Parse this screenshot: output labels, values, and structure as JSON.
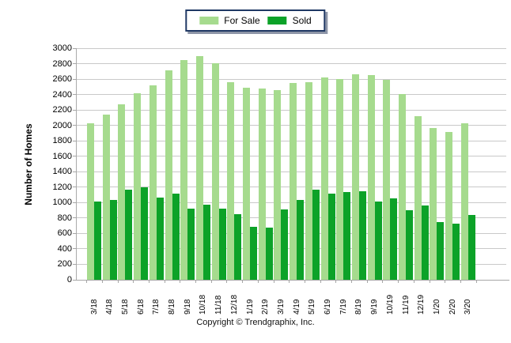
{
  "legend": {
    "items": [
      {
        "label": "For Sale",
        "color": "#A6DB8E"
      },
      {
        "label": "Sold",
        "color": "#0CA228"
      }
    ]
  },
  "footer": {
    "text": "Copyright © Trendgraphix, Inc."
  },
  "colors": {
    "background": "#FFFFFF",
    "gridline": "#C9C9C9",
    "axis": "#A6A6A6",
    "legend_border": "#1F3864",
    "for_sale": "#A6DB8E",
    "sold": "#0CA228"
  },
  "chart_data": {
    "type": "bar",
    "title": "",
    "xlabel": "",
    "ylabel": "Number of Homes",
    "ylim": [
      0,
      3000
    ],
    "ytick_step": 200,
    "grid": true,
    "legend_position": "top-center",
    "categories": [
      "3/18",
      "4/18",
      "5/18",
      "6/18",
      "7/18",
      "8/18",
      "9/18",
      "10/18",
      "11/18",
      "12/18",
      "1/19",
      "2/19",
      "3/19",
      "4/19",
      "5/19",
      "6/19",
      "7/19",
      "8/19",
      "9/19",
      "10/19",
      "11/19",
      "12/19",
      "1/20",
      "2/20",
      "3/20"
    ],
    "series": [
      {
        "name": "For Sale",
        "color": "#A6DB8E",
        "values": [
          2030,
          2140,
          2270,
          2420,
          2520,
          2710,
          2850,
          2900,
          2810,
          2560,
          2490,
          2480,
          2460,
          2550,
          2560,
          2620,
          2600,
          2660,
          2650,
          2590,
          2410,
          2120,
          1970,
          1910,
          2030
        ]
      },
      {
        "name": "Sold",
        "color": "#0CA228",
        "values": [
          1010,
          1030,
          1170,
          1200,
          1060,
          1120,
          920,
          970,
          920,
          850,
          690,
          680,
          910,
          1030,
          1170,
          1120,
          1140,
          1150,
          1010,
          1050,
          900,
          960,
          750,
          730,
          840
        ]
      }
    ]
  }
}
